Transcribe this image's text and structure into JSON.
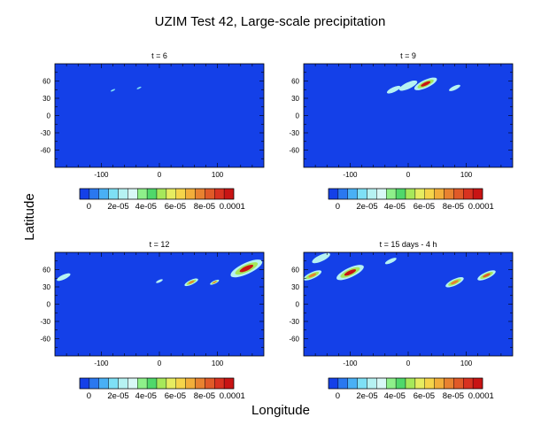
{
  "chart_data": {
    "type": "heatmap",
    "title": "UZIM Test 42, Large-scale precipitation",
    "xlabel": "Longitude",
    "ylabel": "Latitude",
    "xlim": [
      -180,
      180
    ],
    "ylim": [
      -90,
      90
    ],
    "xticks": [
      -100,
      0,
      100
    ],
    "yticks": [
      60,
      30,
      0,
      -30,
      -60
    ],
    "colorbar": {
      "levels": [
        0,
        1e-05,
        2e-05,
        3e-05,
        4e-05,
        5e-05,
        6e-05,
        7e-05,
        8e-05,
        9e-05,
        0.0001
      ],
      "labels": [
        "0",
        "2e-05",
        "4e-05",
        "6e-05",
        "8e-05",
        "0.0001"
      ],
      "colors": [
        "#1440e8",
        "#2a78f0",
        "#49b0f5",
        "#7ee0f5",
        "#b6f2f2",
        "#d8f8f6",
        "#8ef08a",
        "#4fd86a",
        "#a6e85a",
        "#e6ec60",
        "#f5d44a",
        "#f2ae3a",
        "#e88230",
        "#e05a28",
        "#d83220",
        "#c81414"
      ]
    },
    "panels": [
      {
        "subtitle": "t = 6",
        "features": [
          {
            "lon": -80,
            "lat": 44,
            "size": 2,
            "level": 3
          },
          {
            "lon": -35,
            "lat": 48,
            "size": 2,
            "level": 3
          }
        ]
      },
      {
        "subtitle": "t = 9",
        "features": [
          {
            "lon": -25,
            "lat": 45,
            "size": 6,
            "level": 4
          },
          {
            "lon": 0,
            "lat": 52,
            "size": 8,
            "level": 5
          },
          {
            "lon": 30,
            "lat": 55,
            "size": 10,
            "level": 15
          },
          {
            "lon": 80,
            "lat": 48,
            "size": 5,
            "level": 4
          }
        ]
      },
      {
        "subtitle": "t = 12",
        "features": [
          {
            "lon": -165,
            "lat": 47,
            "size": 6,
            "level": 5
          },
          {
            "lon": 0,
            "lat": 40,
            "size": 3,
            "level": 4
          },
          {
            "lon": 55,
            "lat": 38,
            "size": 6,
            "level": 12
          },
          {
            "lon": 95,
            "lat": 38,
            "size": 4,
            "level": 12
          },
          {
            "lon": 150,
            "lat": 62,
            "size": 14,
            "level": 15
          }
        ]
      },
      {
        "subtitle": "t = 15 days - 4 h",
        "features": [
          {
            "lon": -150,
            "lat": 80,
            "size": 8,
            "level": 4
          },
          {
            "lon": -165,
            "lat": 50,
            "size": 8,
            "level": 12
          },
          {
            "lon": -100,
            "lat": 55,
            "size": 12,
            "level": 15
          },
          {
            "lon": -30,
            "lat": 75,
            "size": 5,
            "level": 4
          },
          {
            "lon": 80,
            "lat": 38,
            "size": 8,
            "level": 12
          },
          {
            "lon": 135,
            "lat": 50,
            "size": 8,
            "level": 13
          }
        ]
      }
    ]
  }
}
